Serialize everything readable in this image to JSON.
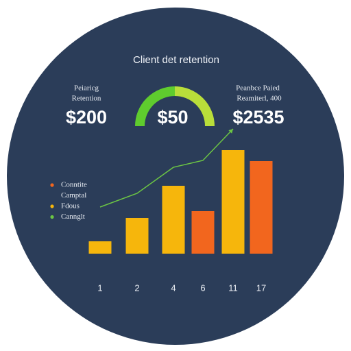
{
  "chart_data": {
    "type": "bar",
    "title": "Client det retention",
    "kpis": [
      {
        "label": "Peiaricg",
        "sublabel": "Retention",
        "value": "$200"
      },
      {
        "value": "$50"
      },
      {
        "label": "Peanbce Paied",
        "sublabel": "Reamiterl, 400",
        "value": "$2535"
      }
    ],
    "categories": [
      "1",
      "2",
      "4",
      "6",
      "11",
      "17"
    ],
    "values": [
      18,
      52,
      99,
      62,
      151,
      135
    ],
    "colors": [
      "#f6b60c",
      "#f6b60c",
      "#f6b60c",
      "#f2661e",
      "#f6b60c",
      "#f2661e"
    ],
    "line": {
      "color": "#6cc644",
      "values": [
        68,
        88,
        126,
        136,
        182,
        null
      ]
    },
    "ylim": [
      0,
      200
    ],
    "legend_items": [
      {
        "name": "Conntite",
        "color": "#f2661e"
      },
      {
        "name": "Camptal"
      },
      {
        "name": "Fdous",
        "color": "#f6b60c"
      },
      {
        "name": "Cannglt",
        "color": "#6cc644"
      }
    ]
  }
}
